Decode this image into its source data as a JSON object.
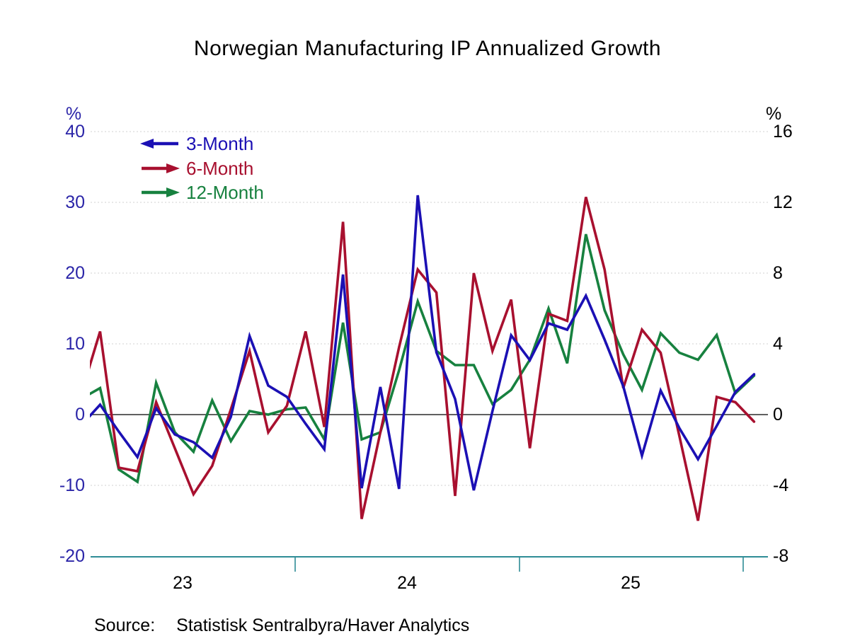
{
  "title": "Norwegian Manufacturing IP Annualized Growth",
  "source": {
    "label": "Source:",
    "text": "Statistisk Sentralbyra/Haver Analytics"
  },
  "left_axis": {
    "unit": "%",
    "ticks": [
      40,
      30,
      20,
      10,
      0,
      -10,
      -20
    ],
    "range": [
      -20,
      40
    ],
    "color": "#2B25A8"
  },
  "right_axis": {
    "unit": "%",
    "ticks": [
      16,
      12,
      8,
      4,
      0,
      -4,
      -8
    ],
    "range": [
      -8,
      16
    ],
    "color": "#000000"
  },
  "x_axis": {
    "year_labels": [
      "23",
      "24",
      "25"
    ],
    "axis_color": "#2E8C96"
  },
  "legend": [
    {
      "label": "3-Month",
      "color": "#1B10B4",
      "arrow": "left"
    },
    {
      "label": "6-Month",
      "color": "#A8102F",
      "arrow": "right"
    },
    {
      "label": "12-Month",
      "color": "#17813F",
      "arrow": "right"
    }
  ],
  "chart_data": {
    "type": "line",
    "title": "Norwegian Manufacturing IP Annualized Growth",
    "x_unit": "month",
    "x": [
      "2023-01",
      "2023-02",
      "2023-03",
      "2023-04",
      "2023-05",
      "2023-06",
      "2023-07",
      "2023-08",
      "2023-09",
      "2023-10",
      "2023-11",
      "2023-12",
      "2024-01",
      "2024-02",
      "2024-03",
      "2024-04",
      "2024-05",
      "2024-06",
      "2024-07",
      "2024-08",
      "2024-09",
      "2024-10",
      "2024-11",
      "2024-12",
      "2025-01",
      "2025-02",
      "2025-03",
      "2025-04",
      "2025-05",
      "2025-06",
      "2025-07",
      "2025-08",
      "2025-09",
      "2025-10",
      "2025-11",
      "2025-12",
      "2026-01"
    ],
    "x_tick_labels": [
      "23",
      "24",
      "25"
    ],
    "left_ylim": [
      -20,
      40
    ],
    "right_ylim": [
      -8,
      16
    ],
    "grid": "horizontal-dotted",
    "legend_position": "top-left",
    "series": [
      {
        "name": "3-Month",
        "axis": "left",
        "color": "#1B10B4",
        "values": [
          -1.5,
          1.4,
          -2.4,
          -6.0,
          0.9,
          -2.8,
          -3.9,
          -6.1,
          -0.3,
          11.1,
          4.1,
          2.5,
          -1.3,
          -4.9,
          19.8,
          -10.4,
          3.9,
          -10.5,
          31.0,
          8.8,
          2.2,
          -10.7,
          0.5,
          11.2,
          7.7,
          12.9,
          12.0,
          16.8,
          10.6,
          4.0,
          -5.8,
          3.4,
          -1.9,
          -6.3,
          -1.6,
          3.2,
          5.7
        ]
      },
      {
        "name": "6-Month",
        "axis": "right",
        "color": "#A8102F",
        "values": [
          1.2,
          4.7,
          -3.0,
          -3.2,
          0.7,
          -1.9,
          -4.5,
          -2.9,
          0.3,
          3.6,
          -1.0,
          0.5,
          4.7,
          -0.7,
          10.9,
          -5.9,
          -1.0,
          3.8,
          8.2,
          6.9,
          -4.6,
          8.0,
          3.6,
          6.5,
          -1.9,
          5.7,
          5.3,
          12.3,
          8.2,
          1.5,
          4.8,
          3.5,
          -1.2,
          -6.0,
          1.0,
          0.7,
          -0.4
        ]
      },
      {
        "name": "12-Month",
        "axis": "right",
        "color": "#17813F",
        "values": [
          0.9,
          1.5,
          -3.1,
          -3.8,
          1.8,
          -1.0,
          -2.1,
          0.8,
          -1.5,
          0.2,
          0.0,
          0.3,
          0.4,
          -1.4,
          5.2,
          -1.4,
          -1.0,
          2.5,
          6.4,
          3.6,
          2.8,
          2.8,
          0.6,
          1.4,
          3.1,
          6.0,
          2.9,
          10.2,
          5.9,
          3.4,
          1.4,
          4.6,
          3.5,
          3.1,
          4.5,
          1.2,
          2.2
        ]
      }
    ]
  }
}
